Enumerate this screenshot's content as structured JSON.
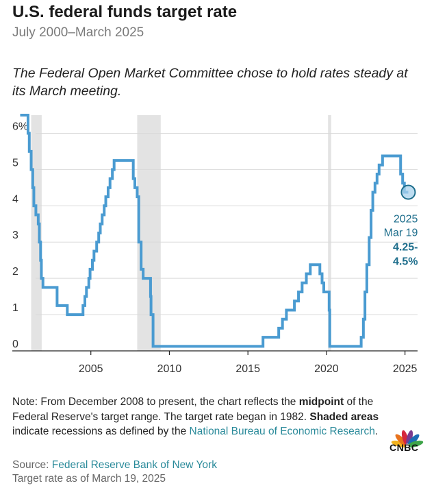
{
  "header": {
    "title": "U.S. federal funds target rate",
    "subtitle": "July 2000–March 2025",
    "intro": "The Federal Open Market Committee chose to hold rates steady at its March meeting."
  },
  "chart_data": {
    "type": "line",
    "title": "U.S. federal funds target rate",
    "xlabel": "",
    "ylabel": "",
    "xlim": [
      2000.0,
      2025.8
    ],
    "ylim": [
      0,
      6.5
    ],
    "x_ticks": [
      {
        "value": 2005,
        "label": "2005"
      },
      {
        "value": 2010,
        "label": "2010"
      },
      {
        "value": 2015,
        "label": "2015"
      },
      {
        "value": 2020,
        "label": "2020"
      },
      {
        "value": 2025,
        "label": "2025"
      }
    ],
    "y_ticks": [
      {
        "value": 0,
        "label": "0"
      },
      {
        "value": 1,
        "label": "1"
      },
      {
        "value": 2,
        "label": "2"
      },
      {
        "value": 3,
        "label": "3"
      },
      {
        "value": 4,
        "label": "4"
      },
      {
        "value": 5,
        "label": "5"
      },
      {
        "value": 6,
        "label": "6%"
      }
    ],
    "recessions": [
      {
        "start": 2001.2,
        "end": 2001.87
      },
      {
        "start": 2007.95,
        "end": 2009.45
      },
      {
        "start": 2020.1,
        "end": 2020.3
      }
    ],
    "series": [
      {
        "name": "Federal funds target rate",
        "color": "#4a9bd1",
        "points": [
          [
            2000.5,
            6.5
          ],
          [
            2001.0,
            6.5
          ],
          [
            2001.0,
            6.0
          ],
          [
            2001.08,
            6.0
          ],
          [
            2001.08,
            5.5
          ],
          [
            2001.2,
            5.5
          ],
          [
            2001.2,
            5.0
          ],
          [
            2001.3,
            5.0
          ],
          [
            2001.3,
            4.5
          ],
          [
            2001.37,
            4.5
          ],
          [
            2001.37,
            4.0
          ],
          [
            2001.5,
            4.0
          ],
          [
            2001.5,
            3.75
          ],
          [
            2001.65,
            3.75
          ],
          [
            2001.65,
            3.5
          ],
          [
            2001.72,
            3.5
          ],
          [
            2001.72,
            3.0
          ],
          [
            2001.8,
            3.0
          ],
          [
            2001.8,
            2.5
          ],
          [
            2001.85,
            2.5
          ],
          [
            2001.85,
            2.0
          ],
          [
            2001.95,
            2.0
          ],
          [
            2001.95,
            1.75
          ],
          [
            2002.85,
            1.75
          ],
          [
            2002.85,
            1.25
          ],
          [
            2003.5,
            1.25
          ],
          [
            2003.5,
            1.0
          ],
          [
            2004.5,
            1.0
          ],
          [
            2004.5,
            1.25
          ],
          [
            2004.62,
            1.25
          ],
          [
            2004.62,
            1.5
          ],
          [
            2004.72,
            1.5
          ],
          [
            2004.72,
            1.75
          ],
          [
            2004.87,
            1.75
          ],
          [
            2004.87,
            2.0
          ],
          [
            2004.95,
            2.0
          ],
          [
            2004.95,
            2.25
          ],
          [
            2005.1,
            2.25
          ],
          [
            2005.1,
            2.5
          ],
          [
            2005.2,
            2.5
          ],
          [
            2005.2,
            2.75
          ],
          [
            2005.37,
            2.75
          ],
          [
            2005.37,
            3.0
          ],
          [
            2005.5,
            3.0
          ],
          [
            2005.5,
            3.25
          ],
          [
            2005.6,
            3.25
          ],
          [
            2005.6,
            3.5
          ],
          [
            2005.72,
            3.5
          ],
          [
            2005.72,
            3.75
          ],
          [
            2005.85,
            3.75
          ],
          [
            2005.85,
            4.0
          ],
          [
            2005.95,
            4.0
          ],
          [
            2005.95,
            4.25
          ],
          [
            2006.1,
            4.25
          ],
          [
            2006.1,
            4.5
          ],
          [
            2006.22,
            4.5
          ],
          [
            2006.22,
            4.75
          ],
          [
            2006.37,
            4.75
          ],
          [
            2006.37,
            5.0
          ],
          [
            2006.48,
            5.0
          ],
          [
            2006.48,
            5.25
          ],
          [
            2007.7,
            5.25
          ],
          [
            2007.7,
            4.75
          ],
          [
            2007.8,
            4.75
          ],
          [
            2007.8,
            4.5
          ],
          [
            2007.95,
            4.5
          ],
          [
            2007.95,
            4.25
          ],
          [
            2008.05,
            4.25
          ],
          [
            2008.05,
            3.0
          ],
          [
            2008.2,
            3.0
          ],
          [
            2008.2,
            2.25
          ],
          [
            2008.33,
            2.25
          ],
          [
            2008.33,
            2.0
          ],
          [
            2008.8,
            2.0
          ],
          [
            2008.8,
            1.5
          ],
          [
            2008.83,
            1.5
          ],
          [
            2008.83,
            1.0
          ],
          [
            2008.96,
            1.0
          ],
          [
            2008.96,
            0.125
          ],
          [
            2015.96,
            0.125
          ],
          [
            2015.96,
            0.375
          ],
          [
            2016.96,
            0.375
          ],
          [
            2016.96,
            0.625
          ],
          [
            2017.2,
            0.625
          ],
          [
            2017.2,
            0.875
          ],
          [
            2017.45,
            0.875
          ],
          [
            2017.45,
            1.125
          ],
          [
            2017.96,
            1.125
          ],
          [
            2017.96,
            1.375
          ],
          [
            2018.22,
            1.375
          ],
          [
            2018.22,
            1.625
          ],
          [
            2018.45,
            1.625
          ],
          [
            2018.45,
            1.875
          ],
          [
            2018.72,
            1.875
          ],
          [
            2018.72,
            2.125
          ],
          [
            2018.97,
            2.125
          ],
          [
            2018.97,
            2.375
          ],
          [
            2019.58,
            2.375
          ],
          [
            2019.58,
            2.125
          ],
          [
            2019.72,
            2.125
          ],
          [
            2019.72,
            1.875
          ],
          [
            2019.83,
            1.875
          ],
          [
            2019.83,
            1.625
          ],
          [
            2020.17,
            1.625
          ],
          [
            2020.17,
            1.125
          ],
          [
            2020.21,
            1.125
          ],
          [
            2020.21,
            0.125
          ],
          [
            2022.21,
            0.125
          ],
          [
            2022.21,
            0.375
          ],
          [
            2022.35,
            0.375
          ],
          [
            2022.35,
            0.875
          ],
          [
            2022.45,
            0.875
          ],
          [
            2022.45,
            1.625
          ],
          [
            2022.57,
            1.625
          ],
          [
            2022.57,
            2.375
          ],
          [
            2022.72,
            2.375
          ],
          [
            2022.72,
            3.125
          ],
          [
            2022.84,
            3.125
          ],
          [
            2022.84,
            3.875
          ],
          [
            2022.95,
            3.875
          ],
          [
            2022.95,
            4.375
          ],
          [
            2023.09,
            4.375
          ],
          [
            2023.09,
            4.625
          ],
          [
            2023.22,
            4.625
          ],
          [
            2023.22,
            4.875
          ],
          [
            2023.35,
            4.875
          ],
          [
            2023.35,
            5.125
          ],
          [
            2023.57,
            5.125
          ],
          [
            2023.57,
            5.375
          ],
          [
            2024.72,
            5.375
          ],
          [
            2024.72,
            4.875
          ],
          [
            2024.85,
            4.875
          ],
          [
            2024.85,
            4.625
          ],
          [
            2024.96,
            4.625
          ],
          [
            2024.96,
            4.375
          ],
          [
            2025.21,
            4.375
          ]
        ]
      }
    ],
    "annotation": {
      "x": 2025.21,
      "y": 4.375,
      "line1": "2025",
      "line2": "Mar 19",
      "line3": "4.25-",
      "line4": "4.5%"
    }
  },
  "notes": {
    "p1": "Note: From December 2008 to present, the chart reflects the ",
    "p1_bold": "midpoint",
    "p2": " of the Federal Reserve's target range. The target rate began in 1982. ",
    "p3_bold": "Shaded areas",
    "p4": " indicate recessions as defined by the ",
    "p4_link": "National Bureau of Economic Research",
    "p5": "."
  },
  "footer": {
    "source_label": "Source: ",
    "source_link": "Federal Reserve Bank of New York",
    "asof": "Target rate as of March 19, 2025",
    "logo_text": "CNBC"
  },
  "colors": {
    "line": "#4a9bd1",
    "recession": "#e3e3e3",
    "grid": "#d9d9d9",
    "annotation": "#1e6e8c",
    "link": "#2a8a9a"
  }
}
